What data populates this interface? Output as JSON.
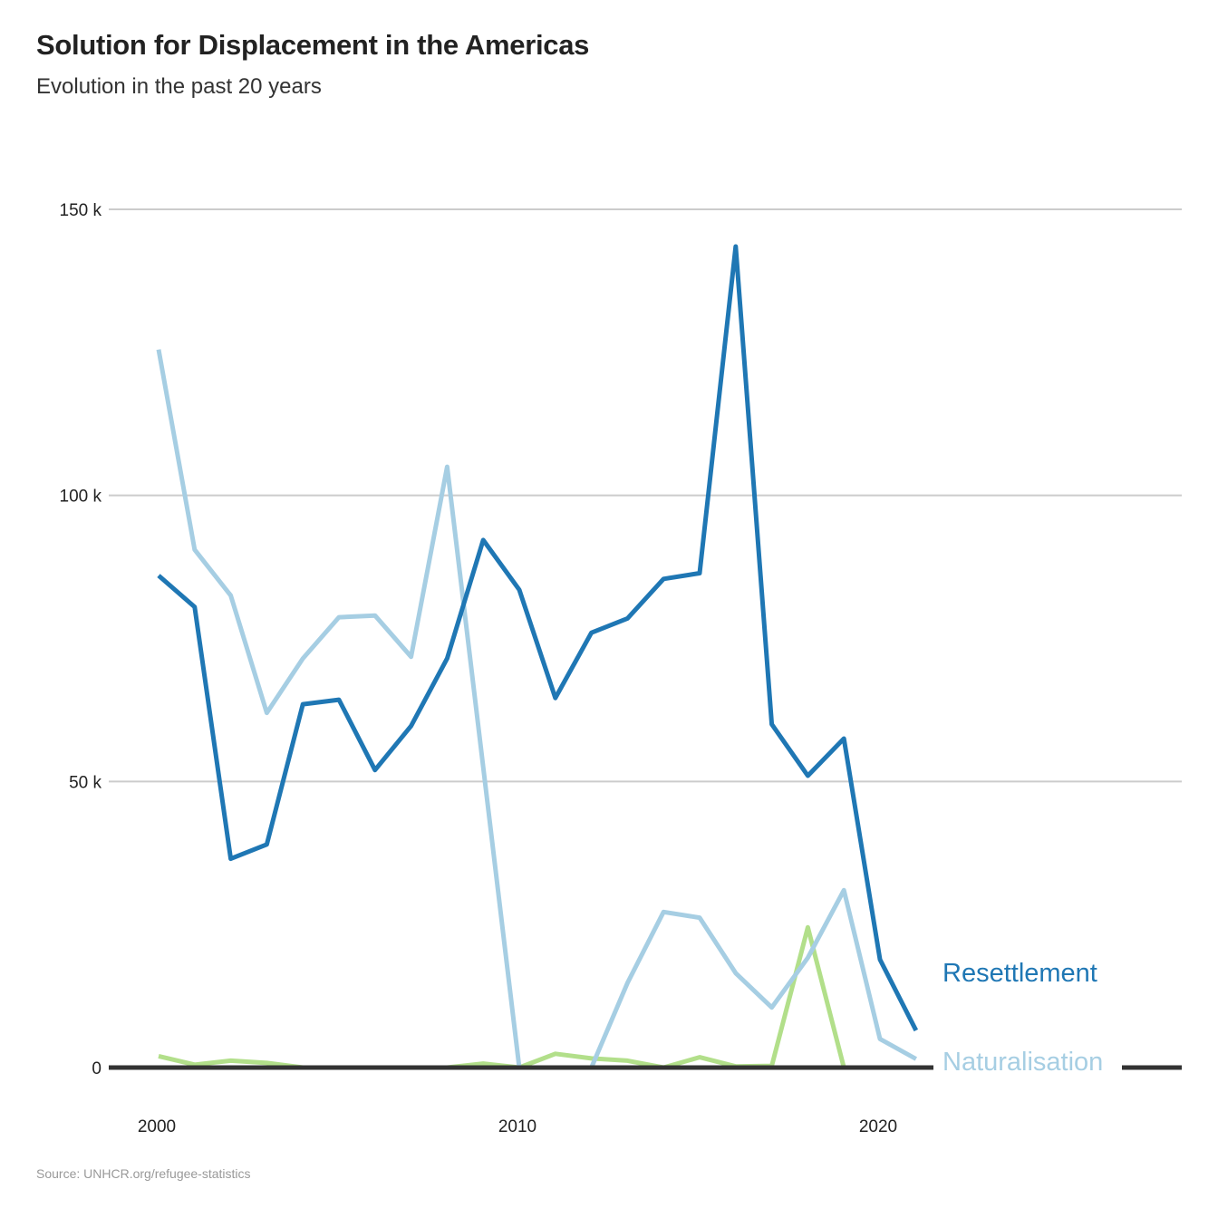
{
  "title": "Solution for Displacement in the Americas",
  "subtitle": "Evolution in the past 20 years",
  "source": "Source: UNHCR.org/refugee-statistics",
  "chart_data": {
    "type": "line",
    "title": "Solution for Displacement in the Americas",
    "subtitle": "Evolution in the past 20 years",
    "xlabel": "",
    "ylabel": "",
    "ylim": [
      0,
      150000
    ],
    "xlim": [
      1998,
      2031
    ],
    "y_ticks": [
      {
        "value": 0,
        "label": "0"
      },
      {
        "value": 50000,
        "label": "50 k"
      },
      {
        "value": 100000,
        "label": "100 k"
      },
      {
        "value": 150000,
        "label": "150 k"
      }
    ],
    "x_ticks": [
      {
        "value": 2000,
        "label": "2000"
      },
      {
        "value": 2010,
        "label": "2010"
      },
      {
        "value": 2020,
        "label": "2020"
      }
    ],
    "grid": true,
    "legend": "direct labels at line ends (right)",
    "series": [
      {
        "name": "Resettlement",
        "label": "Resettlement",
        "color": "#1f77b4",
        "x": [
          2000,
          2001,
          2002,
          2003,
          2004,
          2005,
          2006,
          2007,
          2008,
          2009,
          2010,
          2011,
          2012,
          2013,
          2014,
          2015,
          2016,
          2017,
          2018,
          2019,
          2020,
          2021
        ],
        "y": [
          86000,
          80500,
          36500,
          39000,
          63500,
          64300,
          52000,
          59700,
          71500,
          92200,
          83500,
          64600,
          76000,
          78500,
          85400,
          86400,
          143500,
          60000,
          51000,
          57500,
          18900,
          6500
        ]
      },
      {
        "name": "Naturalisation",
        "label": "Naturalisation",
        "color": "#a6cee3",
        "x": [
          2000,
          2001,
          2002,
          2003,
          2004,
          2005,
          2006,
          2007,
          2008,
          2009,
          2010,
          2011,
          2012,
          2013,
          2014,
          2015,
          2016,
          2017,
          2018,
          2019,
          2020,
          2021
        ],
        "y": [
          125500,
          90500,
          82500,
          62000,
          71500,
          78700,
          79000,
          71800,
          105000,
          52500,
          0,
          0,
          0,
          14800,
          27200,
          26200,
          16500,
          10500,
          19200,
          31000,
          5000,
          1500
        ]
      },
      {
        "name": "",
        "color": "#b2df8a",
        "x": [
          2000,
          2001,
          2002,
          2003,
          2004,
          2005,
          2006,
          2007,
          2008,
          2009,
          2010,
          2011,
          2012,
          2013,
          2014,
          2015,
          2016,
          2017,
          2018,
          2019
        ],
        "y": [
          2000,
          500,
          1200,
          800,
          0,
          0,
          0,
          0,
          0,
          700,
          0,
          2400,
          1600,
          1200,
          0,
          1800,
          200,
          300,
          24500,
          0
        ]
      }
    ]
  }
}
